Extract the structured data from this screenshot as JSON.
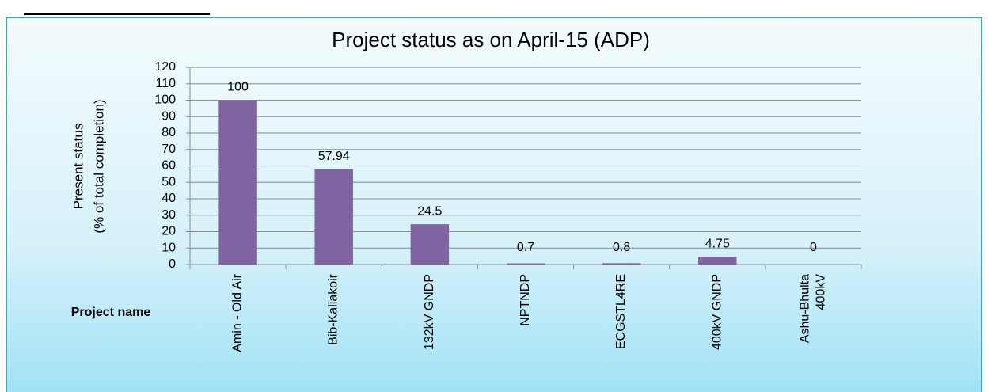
{
  "chart_data": {
    "type": "bar",
    "title": "Project  status as on  April-15 (ADP)",
    "ylabel": [
      "Present status",
      "(% of total completion)"
    ],
    "xlabel": "Project name",
    "categories": [
      "Amin - Old Air",
      "Bib-Kaliakoir",
      "132kV GNDP",
      "NPTNDP",
      "ECGSTL4RE",
      "400kV GNDP",
      "Ashu-Bhulta\n400kV"
    ],
    "values": [
      100,
      57.94,
      24.5,
      0.7,
      0.8,
      4.75,
      0
    ],
    "color": "#8064a2",
    "ylim": [
      0,
      120
    ],
    "yticks": [
      0,
      10,
      20,
      30,
      40,
      50,
      60,
      70,
      80,
      90,
      100,
      110,
      120
    ],
    "grid": true
  }
}
